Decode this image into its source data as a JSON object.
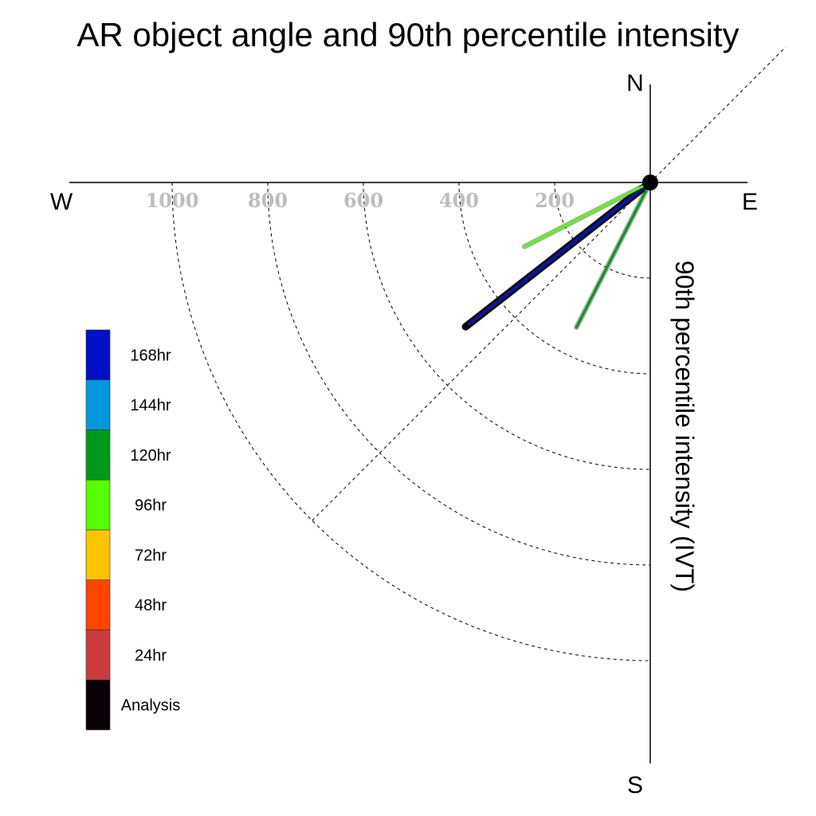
{
  "chart_data": {
    "type": "polar-vector",
    "title": "AR object angle and 90th percentile intensity",
    "ylabel": "90th percentile intensity (IVT)",
    "compass": {
      "north": "N",
      "south": "S",
      "east": "E",
      "west": "W"
    },
    "rings": [
      200,
      400,
      600,
      800,
      1000
    ],
    "ring_labels": [
      "1000",
      "800",
      "600",
      "400",
      "200"
    ],
    "rlim": [
      0,
      1200
    ],
    "grid": true,
    "legend_placement": "left",
    "series": [
      {
        "name": "168hr",
        "color": "#0010c8",
        "angle_deg": 52,
        "intensity": 480
      },
      {
        "name": "144hr",
        "color": "#0099dd",
        "angle_deg": 52,
        "intensity": 355
      },
      {
        "name": "120hr",
        "color": "#009a1a",
        "angle_deg": 27,
        "intensity": 340
      },
      {
        "name": "96hr",
        "color": "#55ff00",
        "angle_deg": 63,
        "intensity": 295
      },
      {
        "name": "72hr",
        "color": "#ffc400",
        "angle_deg": 52,
        "intensity": 480
      },
      {
        "name": "48hr",
        "color": "#ff4400",
        "angle_deg": 52,
        "intensity": 480
      },
      {
        "name": "24hr",
        "color": "#cc3b3b",
        "angle_deg": 52,
        "intensity": 480
      },
      {
        "name": "Analysis",
        "color": "#0a0008",
        "angle_deg": 52,
        "intensity": 490
      }
    ],
    "reference_line_angle_deg": 45
  }
}
